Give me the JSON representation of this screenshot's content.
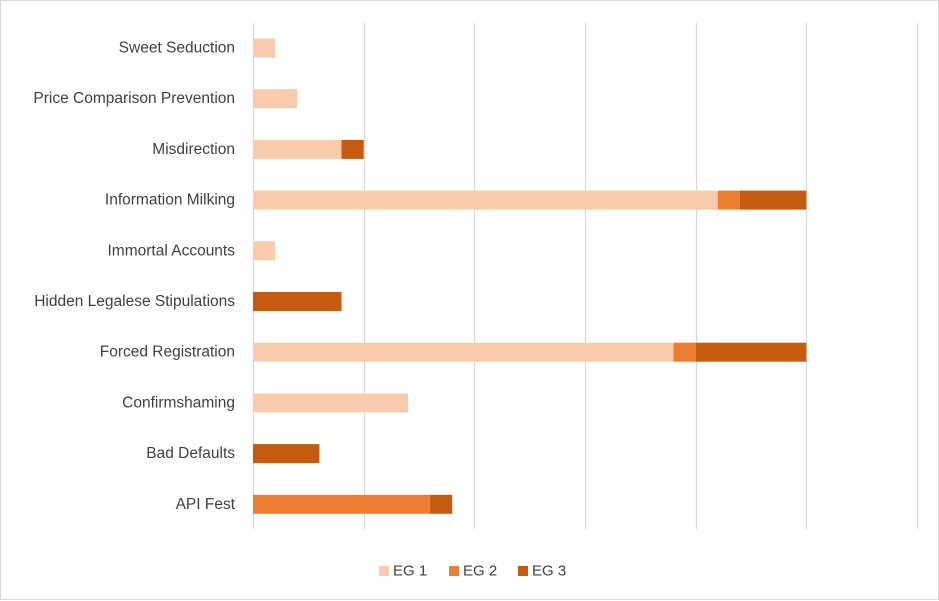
{
  "chart_data": {
    "type": "bar",
    "orientation": "horizontal",
    "stacked": true,
    "categories": [
      "Sweet Seduction",
      "Price Comparison Prevention",
      "Misdirection",
      "Information Milking",
      "Immortal Accounts",
      "Hidden Legalese Stipulations",
      "Forced Registration",
      "Confirmshaming",
      "Bad Defaults",
      "API Fest"
    ],
    "series": [
      {
        "name": "EG 1",
        "color": "#f8cbad",
        "values": [
          1,
          2,
          4,
          21,
          1,
          0,
          19,
          7,
          0,
          0
        ]
      },
      {
        "name": "EG 2",
        "color": "#ed7d31",
        "values": [
          0,
          0,
          0,
          1,
          0,
          0,
          1,
          0,
          0,
          8
        ]
      },
      {
        "name": "EG 3",
        "color": "#c55a11",
        "values": [
          0,
          0,
          1,
          3,
          0,
          4,
          5,
          0,
          3,
          1
        ]
      }
    ],
    "xlim": [
      0,
      30
    ],
    "x_gridline_step": 5,
    "x_tick_labels_shown": false,
    "grid": true,
    "grid_color": "#d9d9d9",
    "legend_position": "bottom",
    "title": "",
    "xlabel": "",
    "ylabel": ""
  }
}
